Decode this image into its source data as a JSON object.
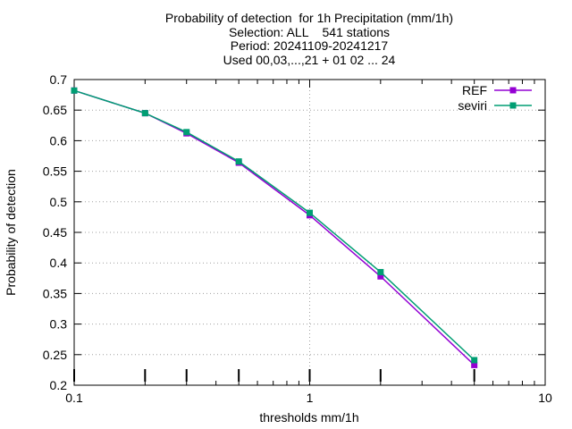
{
  "chart_data": {
    "type": "line",
    "title_lines": [
      "Probability of detection  for 1h Precipitation (mm/1h)",
      "Selection: ALL    541 stations",
      "Period: 20241109-20241217",
      "Used 00,03,...,21 + 01 02 ... 24"
    ],
    "xlabel": "thresholds mm/1h",
    "ylabel": "Probability of detection",
    "x_scale": "log",
    "xlim": [
      0.1,
      10
    ],
    "ylim": [
      0.2,
      0.7
    ],
    "x_ticks": [
      0.1,
      1,
      10
    ],
    "x_tick_labels": [
      "0.1",
      "1",
      "10"
    ],
    "y_ticks": [
      0.2,
      0.25,
      0.3,
      0.35,
      0.4,
      0.45,
      0.5,
      0.55,
      0.6,
      0.65,
      0.7
    ],
    "y_tick_labels": [
      "0.2",
      "0.25",
      "0.3",
      "0.35",
      "0.4",
      "0.45",
      "0.5",
      "0.55",
      "0.6",
      "0.65",
      "0.7"
    ],
    "grid": true,
    "legend_position": "top-right",
    "x": [
      0.1,
      0.2,
      0.3,
      0.5,
      1,
      2,
      5
    ],
    "series": [
      {
        "name": "REF",
        "color": "#9400d3",
        "values": [
          0.682,
          0.645,
          0.612,
          0.564,
          0.478,
          0.378,
          0.233
        ]
      },
      {
        "name": "seviri",
        "color": "#009e73",
        "values": [
          0.682,
          0.645,
          0.614,
          0.566,
          0.482,
          0.385,
          0.241
        ]
      }
    ]
  }
}
